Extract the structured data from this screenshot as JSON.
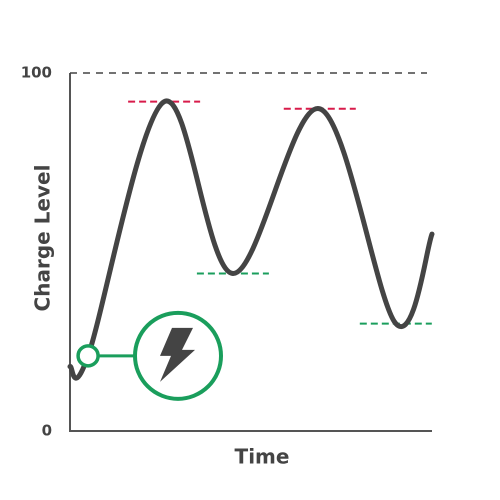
{
  "chart_data": {
    "type": "line",
    "y_label": "Charge Level",
    "x_label": "Time",
    "x": [
      0,
      5,
      26,
      45,
      69,
      90,
      100
    ],
    "values": [
      18,
      21,
      92,
      44,
      90,
      30,
      55
    ],
    "color": "#444444",
    "xlim": [
      0,
      100
    ],
    "ylim": [
      0,
      100
    ],
    "yticks": [
      0,
      100
    ],
    "peak_color": "#d81b4a",
    "trough_color": "#1a9e5c"
  }
}
